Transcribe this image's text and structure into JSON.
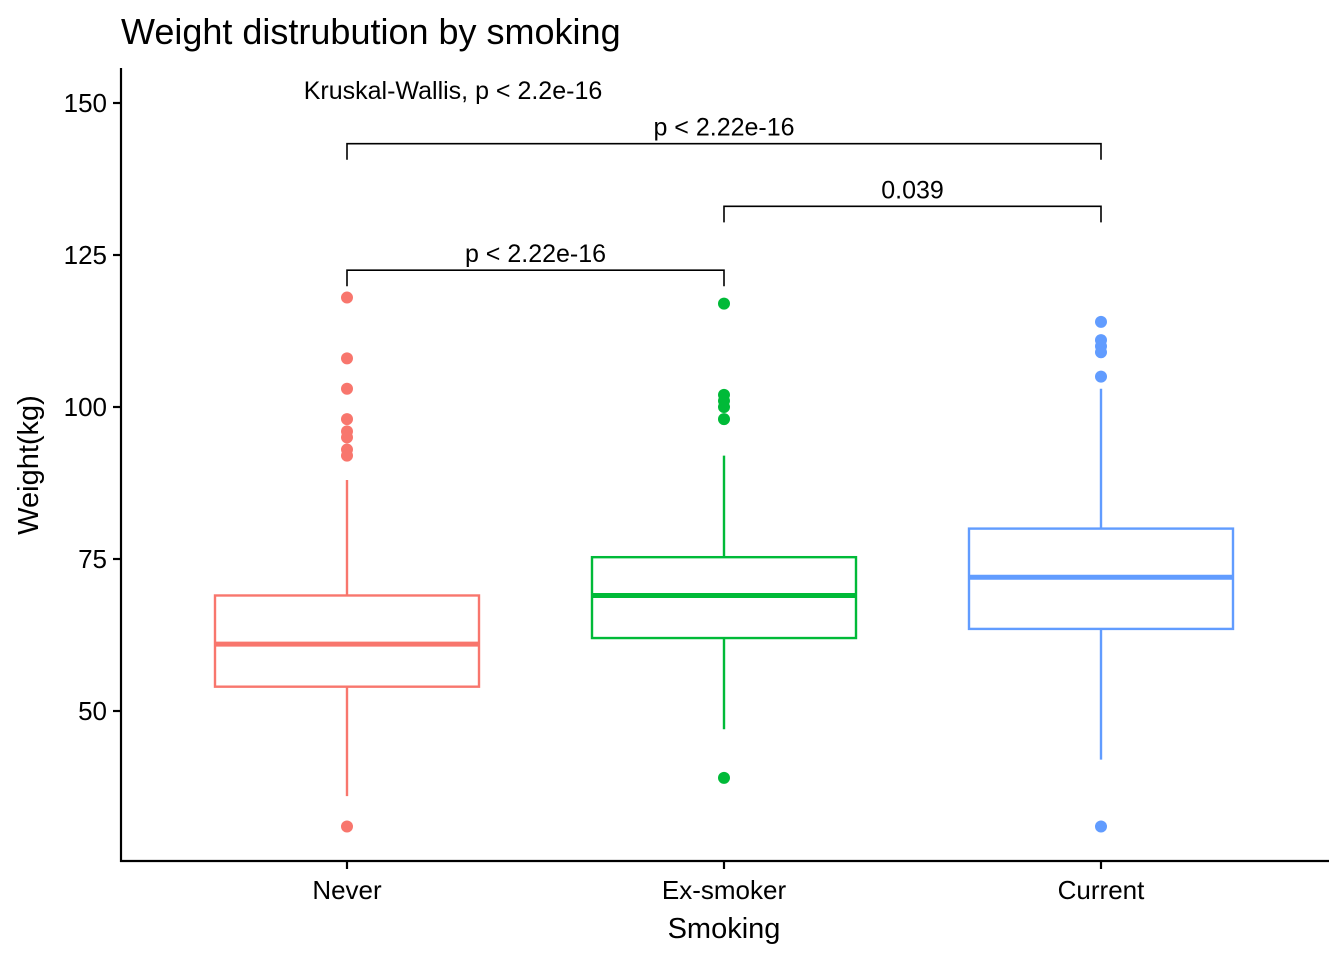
{
  "chart_data": {
    "type": "box",
    "title": "Weight distrubution by smoking",
    "xlabel": "Smoking",
    "ylabel": "Weight(kg)",
    "ylim": [
      26,
      156
    ],
    "yticks": [
      50,
      75,
      100,
      125,
      150
    ],
    "categories": [
      "Never",
      "Ex-smoker",
      "Current"
    ],
    "colors": [
      "#F8766D",
      "#00BA38",
      "#619CFF"
    ],
    "boxes": [
      {
        "category": "Never",
        "whisker_low": 36,
        "q1": 54,
        "median": 61,
        "q3": 69,
        "whisker_high": 88,
        "outliers": [
          118,
          108,
          103,
          98,
          96,
          95,
          93,
          92,
          31
        ]
      },
      {
        "category": "Ex-smoker",
        "whisker_low": 47,
        "q1": 62,
        "median": 69,
        "q3": 75.3,
        "whisker_high": 92,
        "outliers": [
          117,
          102,
          101,
          100,
          98,
          39
        ]
      },
      {
        "category": "Current",
        "whisker_low": 42,
        "q1": 63.5,
        "median": 72,
        "q3": 80,
        "whisker_high": 103,
        "outliers": [
          114,
          111,
          110,
          109,
          105,
          31
        ]
      }
    ],
    "annotations": {
      "global_test": "Kruskal-Wallis, p < 2.2e-16",
      "comparisons": [
        {
          "from": "Never",
          "to": "Current",
          "y": 143.3,
          "label": "p < 2.22e-16"
        },
        {
          "from": "Ex-smoker",
          "to": "Current",
          "y": 133,
          "label": "0.039"
        },
        {
          "from": "Never",
          "to": "Ex-smoker",
          "y": 122.5,
          "label": "p < 2.22e-16"
        }
      ],
      "global_test_position": {
        "category": "Never",
        "y": 152
      }
    },
    "grid": false,
    "legend": "none"
  }
}
